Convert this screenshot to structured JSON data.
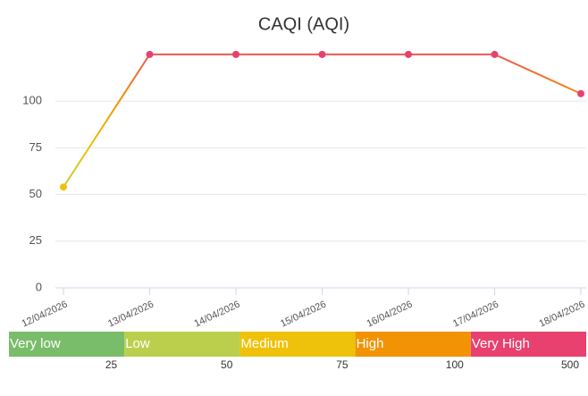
{
  "chart_data": {
    "type": "line",
    "title": "CAQI (AQI)",
    "x": [
      "12/04/2026",
      "13/04/2026",
      "14/04/2026",
      "15/04/2026",
      "16/04/2026",
      "17/04/2026",
      "18/04/2026"
    ],
    "series": [
      {
        "name": "CAQI",
        "values": [
          54,
          125,
          125,
          125,
          125,
          125,
          104
        ]
      }
    ],
    "ylim": [
      0,
      135
    ],
    "yticks": [
      0,
      25,
      50,
      75,
      100
    ],
    "grid": true,
    "scale": [
      {
        "name": "Very low",
        "color": "#79bc6a",
        "max": 25
      },
      {
        "name": "Low",
        "color": "#bbcf4c",
        "max": 50
      },
      {
        "name": "Medium",
        "color": "#eec20b",
        "max": 75
      },
      {
        "name": "High",
        "color": "#f29305",
        "max": 100
      },
      {
        "name": "Very High",
        "color": "#e8416f",
        "max": 500
      }
    ]
  }
}
